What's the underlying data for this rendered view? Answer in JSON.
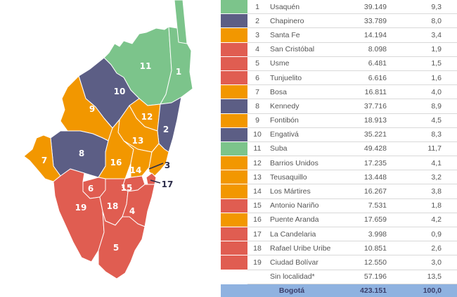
{
  "colors": {
    "green": "#7cc48b",
    "purple": "#5c5e85",
    "orange": "#f29700",
    "red": "#e05d51",
    "total_row": "#8fb2e0"
  },
  "map_labels": [
    "1",
    "2",
    "3",
    "4",
    "5",
    "6",
    "7",
    "8",
    "9",
    "10",
    "11",
    "12",
    "13",
    "14",
    "15",
    "16",
    "17",
    "18",
    "19"
  ],
  "rows": [
    {
      "num": "1",
      "name": "Usaquén",
      "pop": "39.149",
      "pct": "9,3",
      "color": "green"
    },
    {
      "num": "2",
      "name": "Chapinero",
      "pop": "33.789",
      "pct": "8,0",
      "color": "purple"
    },
    {
      "num": "3",
      "name": "Santa Fe",
      "pop": "14.194",
      "pct": "3,4",
      "color": "orange"
    },
    {
      "num": "4",
      "name": "San Cristóbal",
      "pop": "8.098",
      "pct": "1,9",
      "color": "red"
    },
    {
      "num": "5",
      "name": "Usme",
      "pop": "6.481",
      "pct": "1,5",
      "color": "red"
    },
    {
      "num": "6",
      "name": "Tunjuelito",
      "pop": "6.616",
      "pct": "1,6",
      "color": "red"
    },
    {
      "num": "7",
      "name": "Bosa",
      "pop": "16.811",
      "pct": "4,0",
      "color": "orange"
    },
    {
      "num": "8",
      "name": "Kennedy",
      "pop": "37.716",
      "pct": "8,9",
      "color": "purple"
    },
    {
      "num": "9",
      "name": "Fontibón",
      "pop": "18.913",
      "pct": "4,5",
      "color": "orange"
    },
    {
      "num": "10",
      "name": "Engativá",
      "pop": "35.221",
      "pct": "8,3",
      "color": "purple"
    },
    {
      "num": "11",
      "name": "Suba",
      "pop": "49.428",
      "pct": "11,7",
      "color": "green"
    },
    {
      "num": "12",
      "name": "Barrios Unidos",
      "pop": "17.235",
      "pct": "4,1",
      "color": "orange"
    },
    {
      "num": "13",
      "name": "Teusaquillo",
      "pop": "13.448",
      "pct": "3,2",
      "color": "orange"
    },
    {
      "num": "14",
      "name": "Los Mártires",
      "pop": "16.267",
      "pct": "3,8",
      "color": "orange"
    },
    {
      "num": "15",
      "name": "Antonio Nariño",
      "pop": "7.531",
      "pct": "1,8",
      "color": "red"
    },
    {
      "num": "16",
      "name": "Puente Aranda",
      "pop": "17.659",
      "pct": "4,2",
      "color": "orange"
    },
    {
      "num": "17",
      "name": "La Candelaria",
      "pop": "3.998",
      "pct": "0,9",
      "color": "red"
    },
    {
      "num": "18",
      "name": "Rafael Uribe Uribe",
      "pop": "10.851",
      "pct": "2,6",
      "color": "red"
    },
    {
      "num": "19",
      "name": "Ciudad Bolívar",
      "pop": "12.550",
      "pct": "3,0",
      "color": "red"
    },
    {
      "num": "",
      "name": "Sin localidad*",
      "pop": "57.196",
      "pct": "13,5",
      "color": ""
    }
  ],
  "total": {
    "label": "Bogotá",
    "pop": "423.151",
    "pct": "100,0"
  }
}
